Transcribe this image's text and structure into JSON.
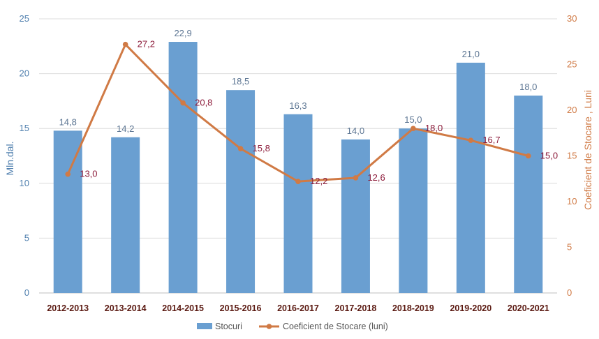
{
  "chart_data": {
    "type": "bar",
    "categories": [
      "2012-2013",
      "2013-2014",
      "2014-2015",
      "2015-2016",
      "2016-2017",
      "2017-2018",
      "2018-2019",
      "2019-2020",
      "2020-2021"
    ],
    "series": [
      {
        "name": "Stocuri",
        "type": "bar",
        "axis": "left",
        "values": [
          14.8,
          14.2,
          22.9,
          18.5,
          16.3,
          14.0,
          15.0,
          21.0,
          18.0
        ],
        "labels": [
          "14,8",
          "14,2",
          "22,9",
          "18,5",
          "16,3",
          "14,0",
          "15,0",
          "21,0",
          "18,0"
        ],
        "color": "#6a9fd1"
      },
      {
        "name": "Coeficient de Stocare (luni)",
        "type": "line",
        "axis": "right",
        "values": [
          13.0,
          27.2,
          20.8,
          15.8,
          12.2,
          12.6,
          18.0,
          16.7,
          15.0
        ],
        "labels": [
          "13,0",
          "27,2",
          "20,8",
          "15,8",
          "12,2",
          "12,6",
          "18,0",
          "16,7",
          "15,0"
        ],
        "color": "#d07a45"
      }
    ],
    "ylabel": "Mln.dal.",
    "y2label": "Coeficient de Stocare , Luni",
    "ylim": [
      0,
      25
    ],
    "y2lim": [
      0,
      30
    ],
    "yticks": [
      0,
      5,
      10,
      15,
      20,
      25
    ],
    "y2ticks": [
      0,
      5,
      10,
      15,
      20,
      25,
      30
    ],
    "grid": true,
    "legend_position": "bottom-center"
  }
}
